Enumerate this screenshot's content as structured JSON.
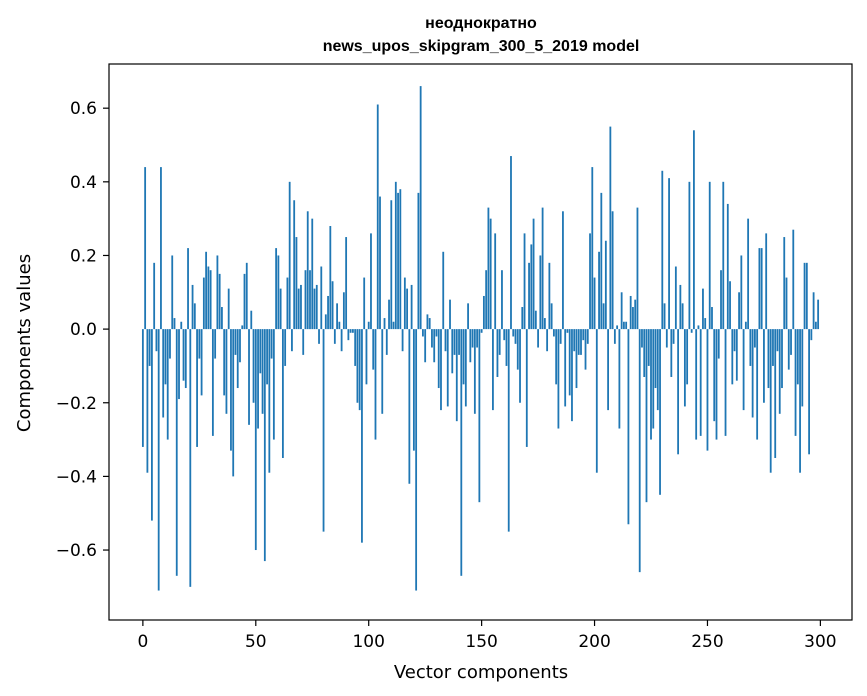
{
  "chart_data": {
    "type": "bar",
    "title_line1": "неоднократно",
    "title_line2": "news_upos_skipgram_300_5_2019 model",
    "xlabel": "Vector components",
    "ylabel": "Components values",
    "xlim": [
      -15,
      314
    ],
    "ylim": [
      -0.79,
      0.72
    ],
    "x_ticks": [
      0,
      50,
      100,
      150,
      200,
      250,
      300
    ],
    "y_ticks": [
      -0.6,
      -0.4,
      -0.2,
      0.0,
      0.2,
      0.4,
      0.6
    ],
    "y_tick_labels": [
      "−0.6",
      "−0.4",
      "−0.2",
      "0.0",
      "0.2",
      "0.4",
      "0.6"
    ],
    "grid": false,
    "bar_color": "#1f77b4",
    "x": [
      0,
      1,
      2,
      3,
      4,
      5,
      6,
      7,
      8,
      9,
      10,
      11,
      12,
      13,
      14,
      15,
      16,
      17,
      18,
      19,
      20,
      21,
      22,
      23,
      24,
      25,
      26,
      27,
      28,
      29,
      30,
      31,
      32,
      33,
      34,
      35,
      36,
      37,
      38,
      39,
      40,
      41,
      42,
      43,
      44,
      45,
      46,
      47,
      48,
      49,
      50,
      51,
      52,
      53,
      54,
      55,
      56,
      57,
      58,
      59,
      60,
      61,
      62,
      63,
      64,
      65,
      66,
      67,
      68,
      69,
      70,
      71,
      72,
      73,
      74,
      75,
      76,
      77,
      78,
      79,
      80,
      81,
      82,
      83,
      84,
      85,
      86,
      87,
      88,
      89,
      90,
      91,
      92,
      93,
      94,
      95,
      96,
      97,
      98,
      99,
      100,
      101,
      102,
      103,
      104,
      105,
      106,
      107,
      108,
      109,
      110,
      111,
      112,
      113,
      114,
      115,
      116,
      117,
      118,
      119,
      120,
      121,
      122,
      123,
      124,
      125,
      126,
      127,
      128,
      129,
      130,
      131,
      132,
      133,
      134,
      135,
      136,
      137,
      138,
      139,
      140,
      141,
      142,
      143,
      144,
      145,
      146,
      147,
      148,
      149,
      150,
      151,
      152,
      153,
      154,
      155,
      156,
      157,
      158,
      159,
      160,
      161,
      162,
      163,
      164,
      165,
      166,
      167,
      168,
      169,
      170,
      171,
      172,
      173,
      174,
      175,
      176,
      177,
      178,
      179,
      180,
      181,
      182,
      183,
      184,
      185,
      186,
      187,
      188,
      189,
      190,
      191,
      192,
      193,
      194,
      195,
      196,
      197,
      198,
      199,
      200,
      201,
      202,
      203,
      204,
      205,
      206,
      207,
      208,
      209,
      210,
      211,
      212,
      213,
      214,
      215,
      216,
      217,
      218,
      219,
      220,
      221,
      222,
      223,
      224,
      225,
      226,
      227,
      228,
      229,
      230,
      231,
      232,
      233,
      234,
      235,
      236,
      237,
      238,
      239,
      240,
      241,
      242,
      243,
      244,
      245,
      246,
      247,
      248,
      249,
      250,
      251,
      252,
      253,
      254,
      255,
      256,
      257,
      258,
      259,
      260,
      261,
      262,
      263,
      264,
      265,
      266,
      267,
      268,
      269,
      270,
      271,
      272,
      273,
      274,
      275,
      276,
      277,
      278,
      279,
      280,
      281,
      282,
      283,
      284,
      285,
      286,
      287,
      288,
      289,
      290,
      291,
      292,
      293,
      294,
      295,
      296,
      297,
      298,
      299
    ],
    "values": [
      -0.32,
      0.44,
      -0.39,
      -0.1,
      -0.52,
      0.18,
      -0.06,
      -0.71,
      0.44,
      -0.24,
      -0.15,
      -0.3,
      -0.08,
      0.2,
      0.03,
      -0.67,
      -0.19,
      0.02,
      -0.14,
      -0.16,
      0.22,
      -0.7,
      0.12,
      0.07,
      -0.32,
      -0.08,
      -0.18,
      0.14,
      0.21,
      0.17,
      0.16,
      -0.29,
      -0.08,
      0.2,
      0.15,
      0.06,
      -0.18,
      -0.23,
      0.11,
      -0.33,
      -0.4,
      -0.07,
      -0.16,
      -0.09,
      0.01,
      0.15,
      0.18,
      -0.26,
      0.05,
      -0.2,
      -0.6,
      -0.27,
      -0.12,
      -0.23,
      -0.63,
      -0.15,
      -0.39,
      -0.08,
      -0.3,
      0.22,
      0.2,
      0.11,
      -0.35,
      -0.1,
      0.14,
      0.4,
      -0.06,
      0.35,
      0.25,
      0.11,
      0.12,
      -0.07,
      0.16,
      0.32,
      0.16,
      0.3,
      0.11,
      0.12,
      -0.04,
      0.17,
      -0.55,
      0.04,
      0.09,
      0.28,
      0.13,
      -0.04,
      0.07,
      0.02,
      -0.06,
      0.1,
      0.25,
      -0.03,
      -0.01,
      -0.01,
      -0.1,
      -0.2,
      -0.22,
      -0.58,
      0.14,
      -0.15,
      0.02,
      0.26,
      -0.11,
      -0.3,
      0.61,
      0.36,
      -0.23,
      0.03,
      -0.07,
      0.08,
      0.35,
      0.02,
      0.4,
      0.37,
      0.38,
      -0.06,
      0.14,
      0.11,
      -0.42,
      0.12,
      -0.33,
      -0.71,
      0.37,
      0.66,
      -0.02,
      -0.09,
      0.04,
      0.03,
      -0.05,
      -0.09,
      -0.02,
      -0.16,
      -0.22,
      0.21,
      -0.06,
      -0.21,
      0.08,
      -0.12,
      -0.07,
      -0.25,
      -0.07,
      -0.67,
      -0.15,
      -0.21,
      0.07,
      -0.09,
      -0.05,
      -0.23,
      -0.05,
      -0.47,
      -0.01,
      0.09,
      0.16,
      0.33,
      0.3,
      -0.22,
      0.26,
      -0.13,
      -0.07,
      0.16,
      -0.03,
      -0.1,
      -0.55,
      0.47,
      -0.02,
      -0.04,
      -0.11,
      -0.2,
      0.06,
      0.26,
      -0.32,
      0.18,
      0.23,
      0.3,
      0.05,
      -0.05,
      0.2,
      0.33,
      0.03,
      -0.06,
      0.18,
      0.07,
      -0.02,
      -0.15,
      -0.27,
      -0.04,
      0.32,
      -0.21,
      -0.01,
      -0.18,
      -0.25,
      -0.06,
      -0.16,
      -0.07,
      -0.07,
      -0.03,
      -0.11,
      -0.04,
      0.26,
      0.44,
      0.14,
      -0.39,
      0.21,
      0.37,
      0.07,
      0.24,
      -0.22,
      0.55,
      0.32,
      -0.04,
      0.01,
      -0.27,
      0.1,
      0.02,
      0.02,
      -0.53,
      0.09,
      0.06,
      0.08,
      0.33,
      -0.66,
      -0.05,
      -0.13,
      -0.47,
      -0.1,
      -0.3,
      -0.27,
      -0.16,
      -0.22,
      -0.45,
      0.43,
      0.07,
      -0.05,
      0.41,
      -0.13,
      -0.04,
      0.17,
      -0.34,
      0.12,
      0.07,
      -0.21,
      -0.15,
      0.4,
      -0.01,
      0.54,
      -0.3,
      0.01,
      -0.29,
      0.11,
      0.03,
      -0.33,
      0.4,
      0.06,
      -0.25,
      -0.3,
      -0.08,
      0.16,
      0.4,
      -0.29,
      0.34,
      0.13,
      -0.15,
      -0.06,
      -0.14,
      0.1,
      0.2,
      -0.22,
      0.02,
      0.3,
      -0.1,
      -0.24,
      -0.05,
      -0.3,
      0.22,
      0.22,
      -0.2,
      0.26,
      -0.16,
      -0.39,
      -0.1,
      -0.35,
      -0.06,
      -0.23,
      -0.16,
      0.25,
      0.14,
      -0.11,
      -0.07,
      0.27,
      -0.29,
      -0.15,
      -0.39,
      -0.21,
      0.18,
      0.18,
      -0.34,
      -0.03,
      0.1,
      0.02,
      0.08
    ]
  }
}
